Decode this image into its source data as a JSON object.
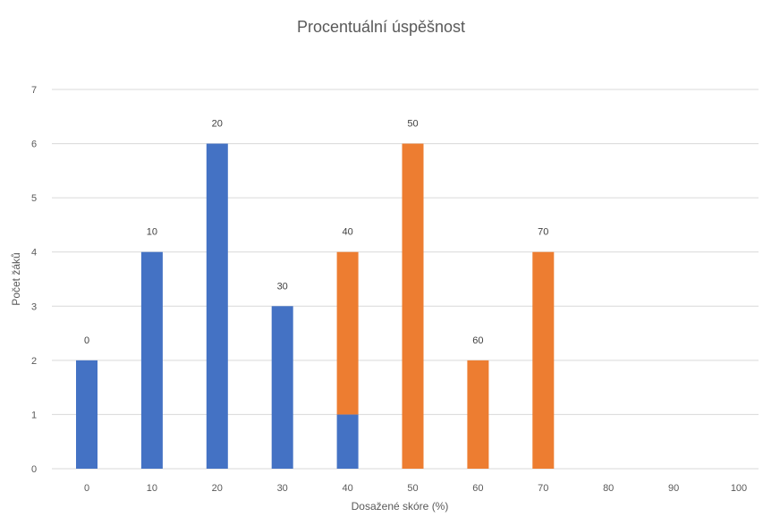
{
  "chart_data": {
    "type": "bar",
    "title": "Procentuální úspěšnost",
    "xlabel": "Dosažené skóre (%)",
    "ylabel": "Počet žáků",
    "categories": [
      "0",
      "10",
      "20",
      "30",
      "40",
      "50",
      "60",
      "70",
      "80",
      "90",
      "100"
    ],
    "stacked": true,
    "series": [
      {
        "color": "#4472c4",
        "values": [
          2,
          4,
          6,
          3,
          1,
          0,
          0,
          0,
          0,
          0,
          0
        ]
      },
      {
        "color": "#ed7d31",
        "values": [
          0,
          0,
          0,
          0,
          3,
          6,
          2,
          4,
          0,
          0,
          0
        ]
      }
    ],
    "data_labels": [
      "0",
      "10",
      "20",
      "30",
      "40",
      "50",
      "60",
      "70",
      "",
      "",
      ""
    ],
    "ylim": [
      0,
      7
    ],
    "yticks": [
      0,
      1,
      2,
      3,
      4,
      5,
      6,
      7
    ],
    "grid": true,
    "legend": "none"
  }
}
